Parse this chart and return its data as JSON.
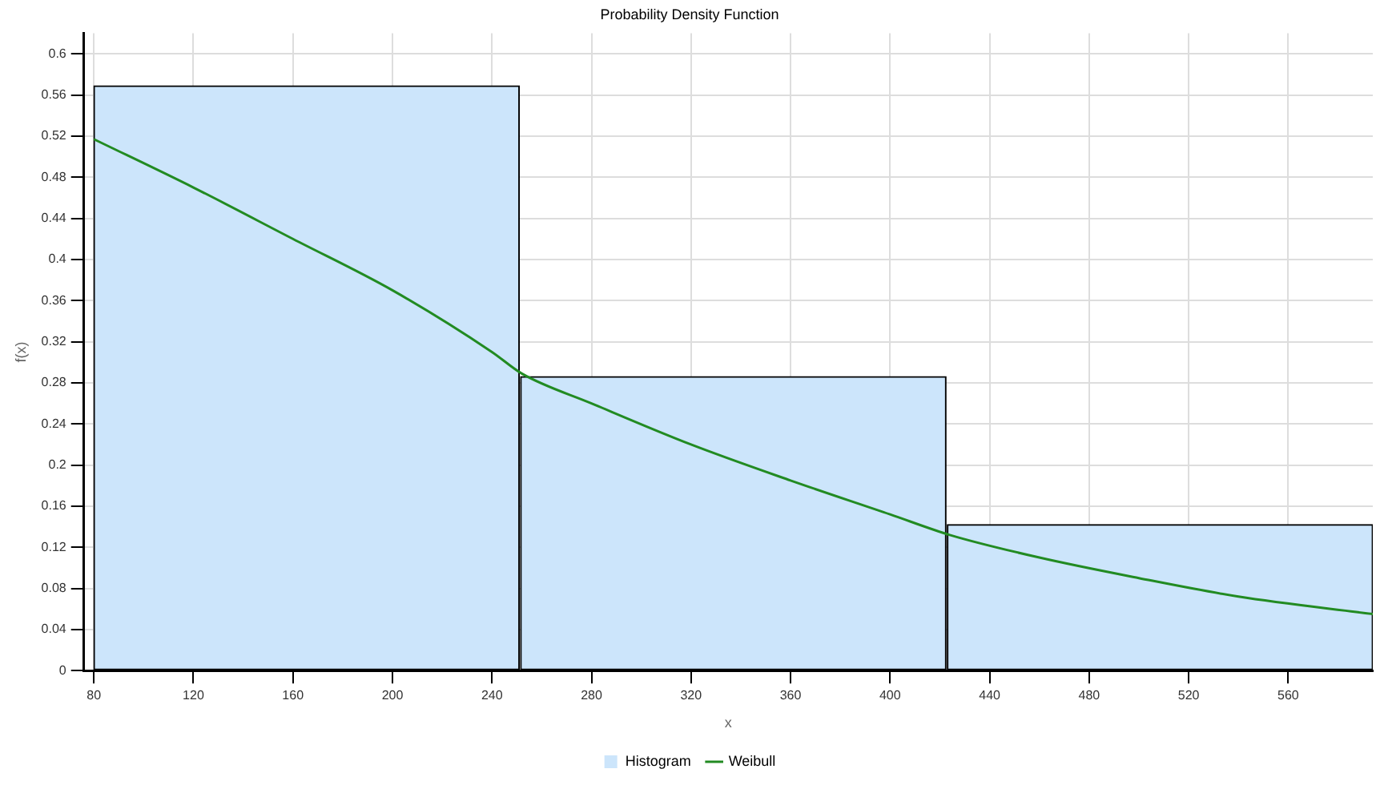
{
  "chart_data": {
    "type": "histogram",
    "title": "Probability Density Function",
    "xlabel": "x",
    "ylabel": "f(x)",
    "bins": [
      80,
      251,
      423,
      594
    ],
    "series": [
      {
        "name": "Histogram",
        "color": "#cce5fb",
        "values": [
          0.569,
          0.286,
          0.142
        ]
      },
      {
        "name": "Weibull",
        "type": "line",
        "color": "#228b22",
        "x": [
          80,
          120,
          160,
          200,
          240,
          252,
          280,
          320,
          360,
          400,
          424,
          460,
          500,
          540,
          594
        ],
        "values": [
          0.517,
          0.47,
          0.42,
          0.37,
          0.31,
          0.289,
          0.26,
          0.22,
          0.185,
          0.152,
          0.132,
          0.11,
          0.09,
          0.072,
          0.055
        ]
      }
    ],
    "xlim": [
      76,
      594
    ],
    "xticks": [
      80,
      120,
      160,
      200,
      240,
      280,
      320,
      360,
      400,
      440,
      480,
      520,
      560
    ],
    "ylim": [
      0,
      0.62
    ],
    "yticks": [
      0,
      0.04,
      0.08,
      0.12,
      0.16,
      0.2,
      0.24,
      0.28,
      0.32,
      0.36,
      0.4,
      0.44,
      0.48,
      0.52,
      0.56,
      0.6
    ],
    "grid": true,
    "legend": "bottom",
    "marker": "none",
    "line_style": "solid"
  }
}
